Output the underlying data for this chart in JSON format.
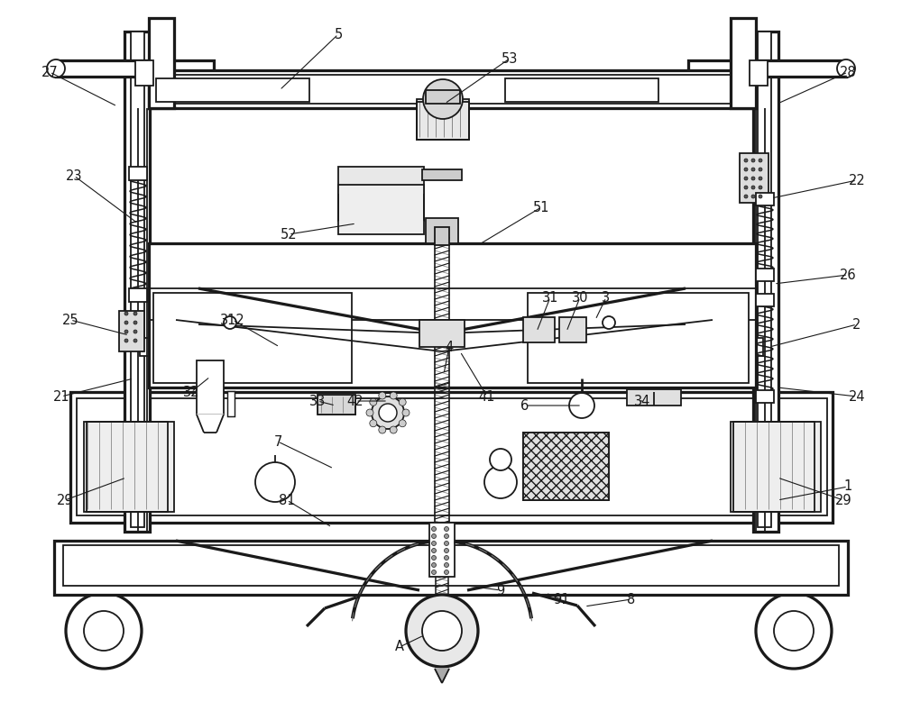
{
  "bg_color": "#ffffff",
  "line_color": "#1a1a1a",
  "lw": 1.3,
  "fig_width": 10.0,
  "fig_height": 7.89
}
